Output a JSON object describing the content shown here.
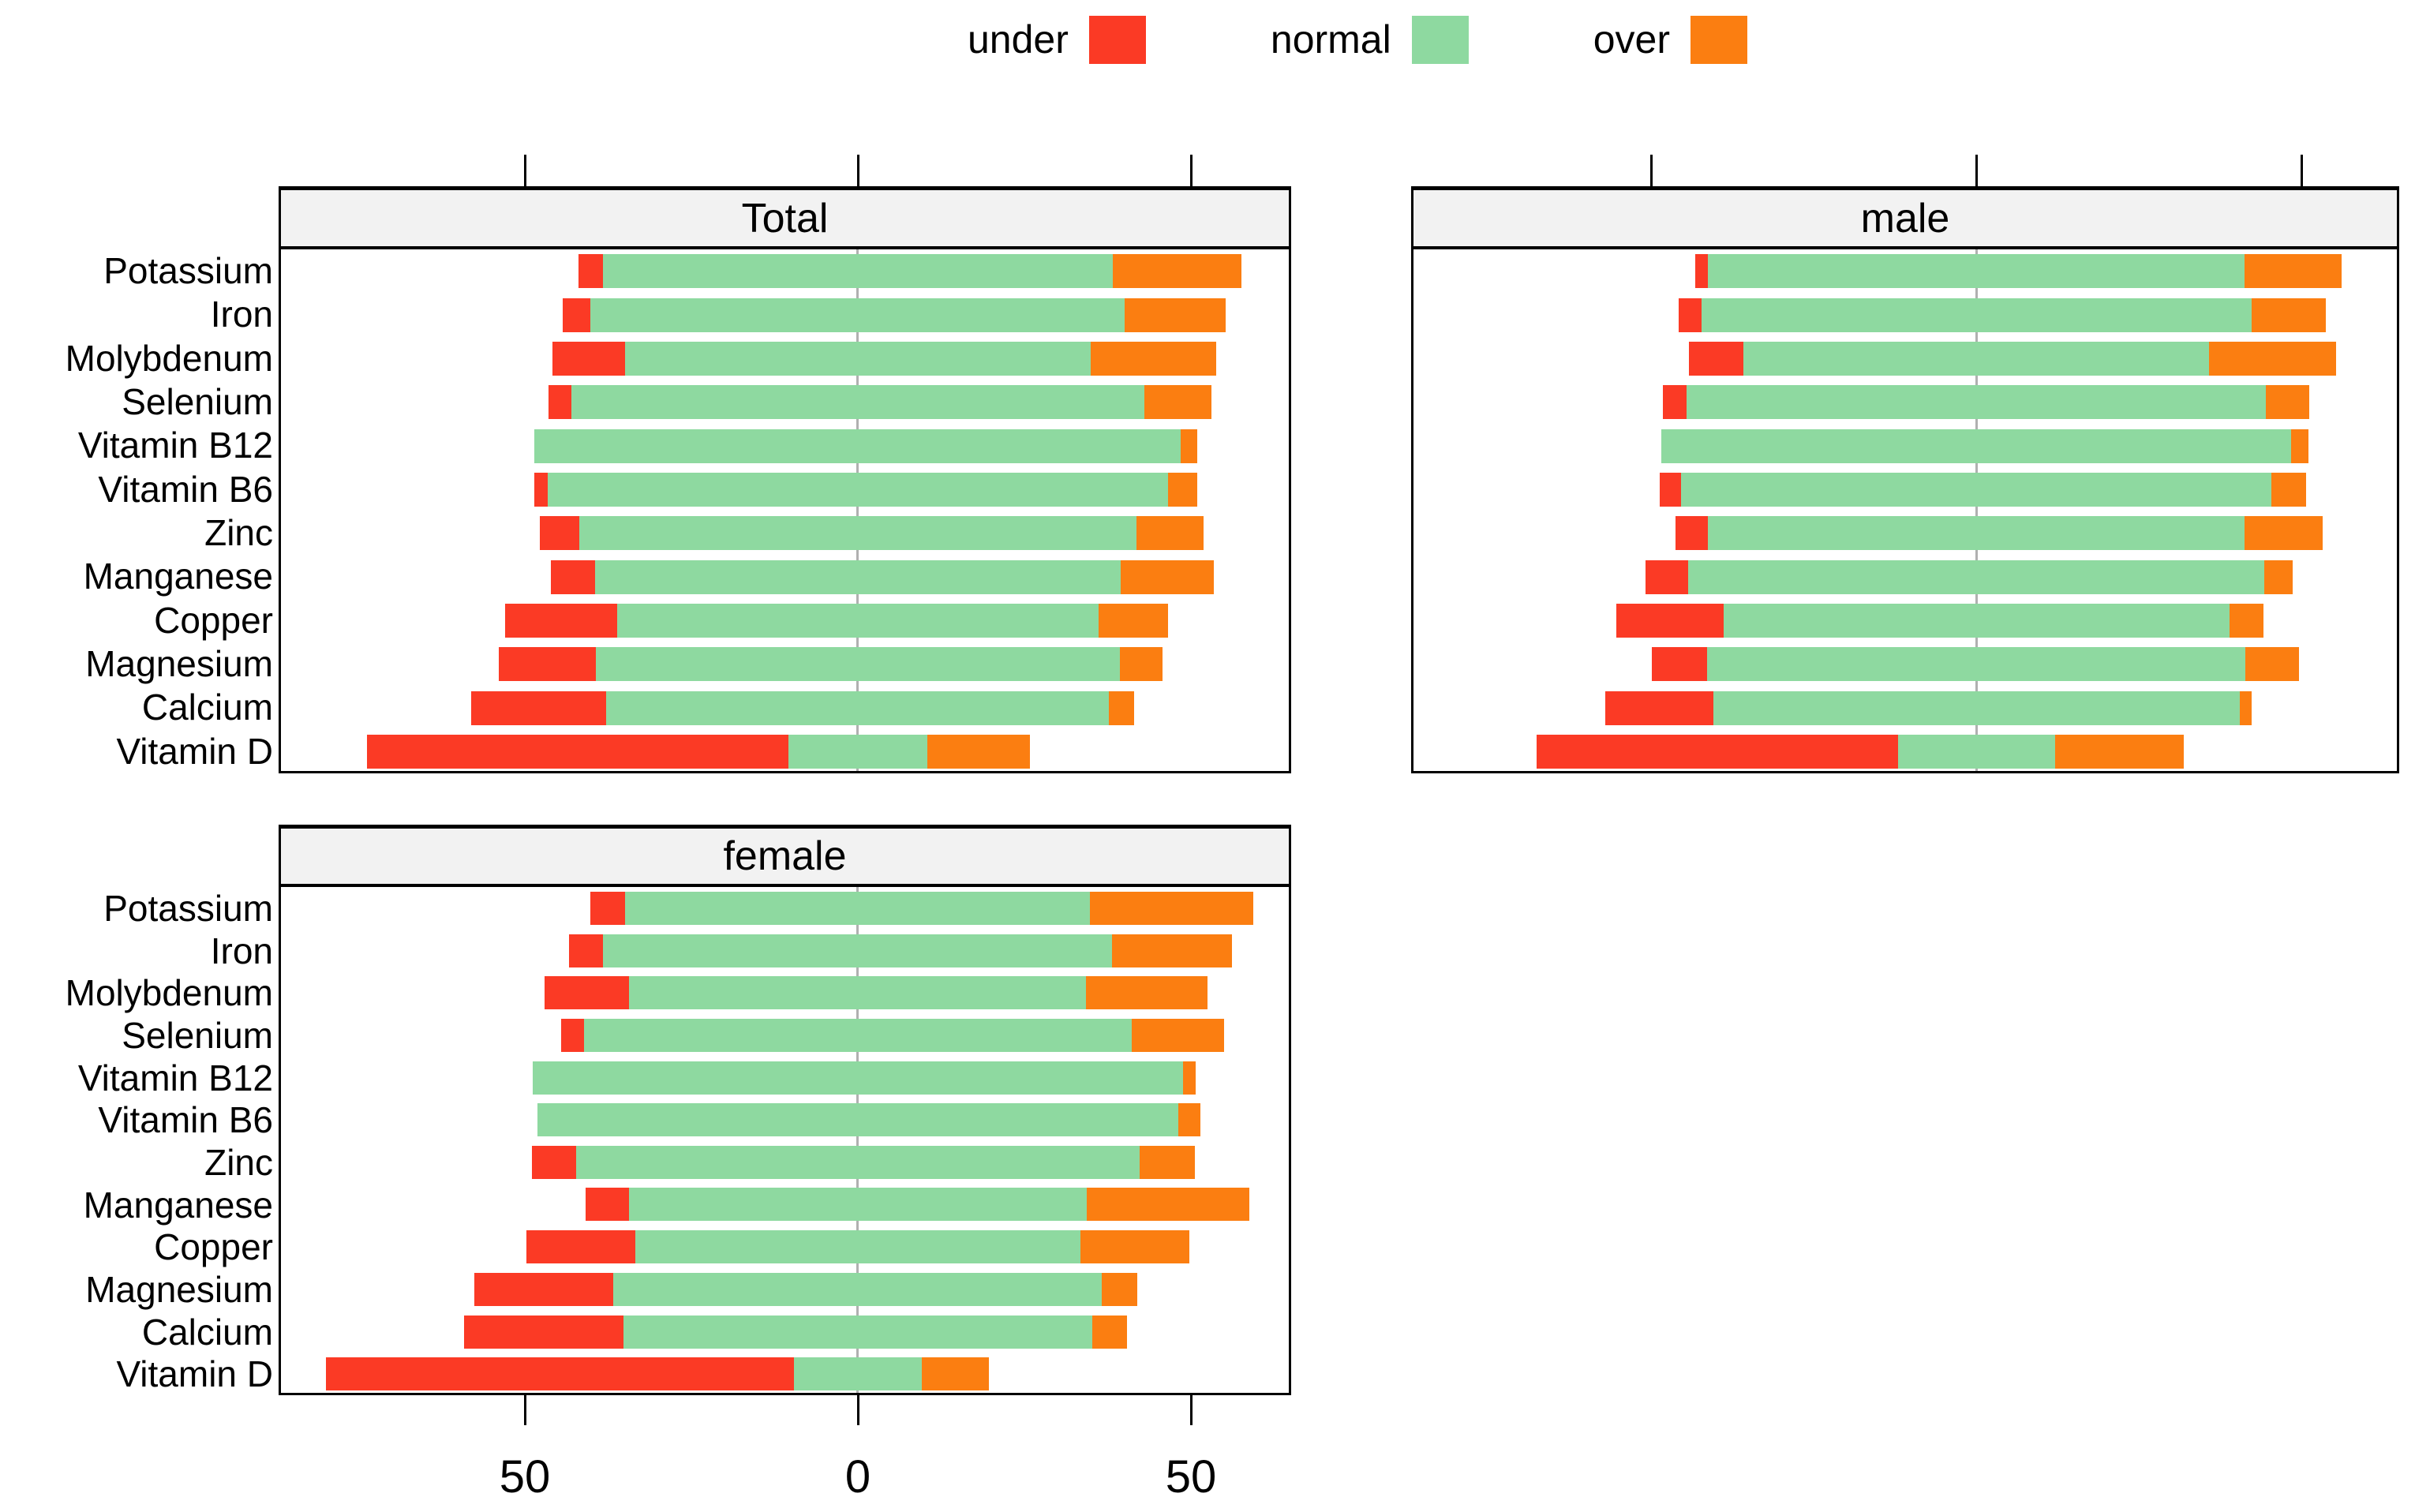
{
  "legend": {
    "items": [
      {
        "label": "under",
        "color": "#fb3a25"
      },
      {
        "label": "normal",
        "color": "#8ed9a0"
      },
      {
        "label": "over",
        "color": "#fb7e11"
      }
    ]
  },
  "chart_data": {
    "type": "bar",
    "variant": "diverging-stacked-likert",
    "description": "Percent of subjects under / normal / over recommended micronutrient intake; 'normal' segment centered at 0, 'under' extends left, 'over' extends right.",
    "categories": [
      "Potassium",
      "Iron",
      "Molybdenum",
      "Selenium",
      "Vitamin B12",
      "Vitamin B6",
      "Zinc",
      "Manganese",
      "Copper",
      "Magnesium",
      "Calcium",
      "Vitamin D"
    ],
    "series_names": [
      "under",
      "normal",
      "over"
    ],
    "colors": {
      "under": "#fb3a25",
      "normal": "#8ed9a0",
      "over": "#fb7e11"
    },
    "panels": [
      {
        "title": "Total",
        "series": {
          "under": [
            3.7,
            4.2,
            10.9,
            3.5,
            0.0,
            2.0,
            5.9,
            6.6,
            16.8,
            14.6,
            20.4,
            63.5
          ],
          "normal": [
            76.9,
            80.6,
            70.2,
            86.4,
            97.5,
            93.6,
            84.0,
            79.3,
            72.7,
            79.0,
            75.8,
            21.0
          ],
          "over": [
            19.4,
            15.2,
            18.9,
            10.1,
            2.5,
            4.4,
            10.1,
            14.1,
            10.5,
            6.4,
            3.8,
            15.5
          ]
        }
      },
      {
        "title": "male",
        "series": {
          "under": [
            2.0,
            3.5,
            8.4,
            3.7,
            0.0,
            3.4,
            5.0,
            6.6,
            16.5,
            8.5,
            16.7,
            55.8
          ],
          "normal": [
            83.0,
            85.0,
            72.0,
            89.6,
            97.4,
            91.2,
            83.0,
            89.0,
            78.2,
            83.2,
            81.4,
            24.3
          ],
          "over": [
            15.0,
            11.5,
            19.6,
            6.7,
            2.6,
            5.4,
            12.0,
            4.4,
            5.3,
            8.3,
            1.9,
            19.9
          ]
        }
      },
      {
        "title": "female",
        "series": {
          "under": [
            5.3,
            5.2,
            12.8,
            3.4,
            0.0,
            0.0,
            6.7,
            6.5,
            16.4,
            21.0,
            24.0,
            70.6
          ],
          "normal": [
            70.1,
            76.8,
            68.9,
            82.7,
            98.0,
            96.6,
            85.0,
            69.0,
            67.2,
            73.7,
            70.7,
            19.3
          ],
          "over": [
            24.6,
            18.0,
            18.3,
            13.9,
            2.0,
            3.4,
            8.3,
            24.5,
            16.4,
            5.3,
            5.3,
            10.1
          ]
        }
      }
    ],
    "x_axis": {
      "ticks": [
        -50,
        0,
        50
      ],
      "tick_labels": [
        "50",
        "0",
        "50"
      ],
      "xlim": [
        -87,
        65
      ]
    },
    "grid": {
      "zero_line": true
    },
    "legend_position": "top-center"
  }
}
